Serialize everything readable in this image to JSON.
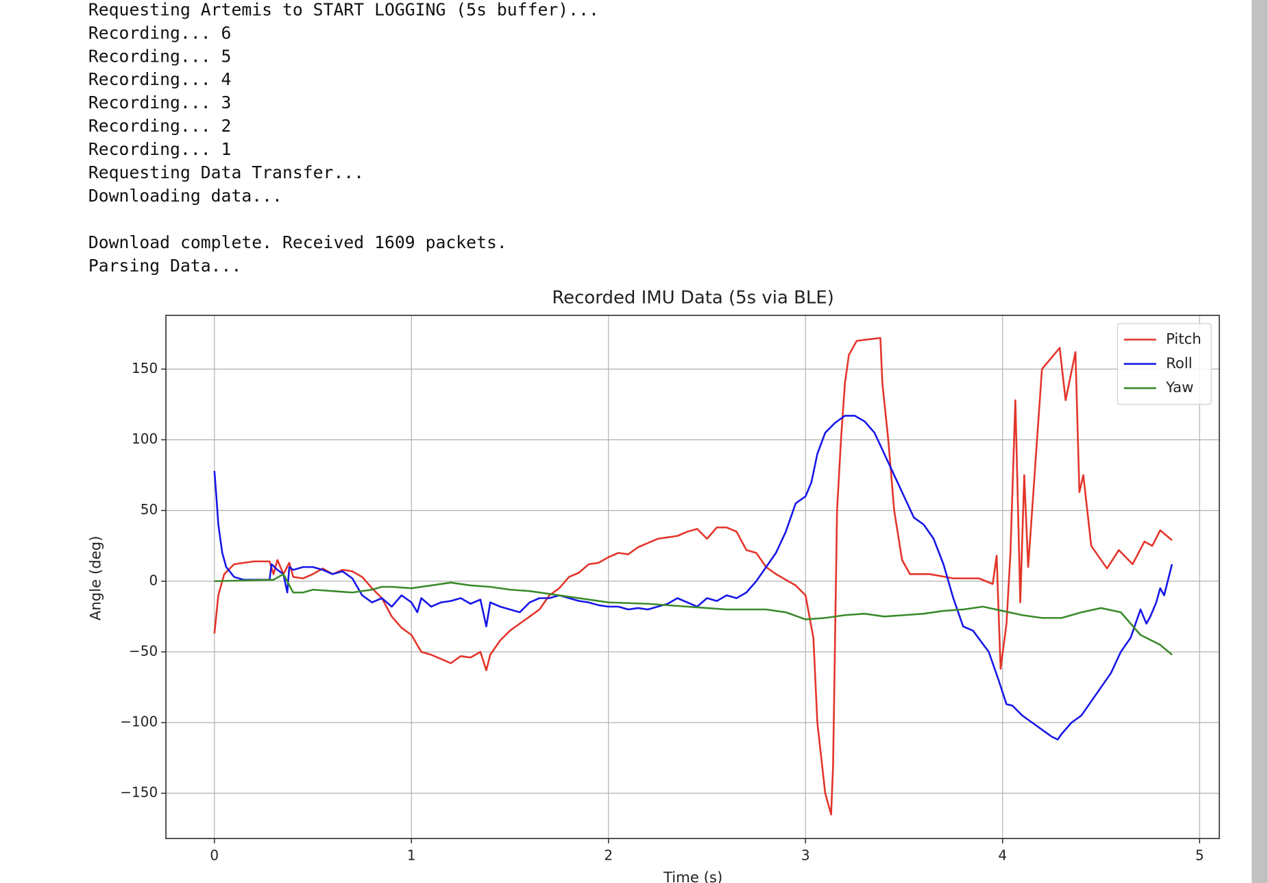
{
  "output": {
    "lines": [
      "Requesting Artemis to START LOGGING (5s buffer)...",
      "Recording... 6",
      "Recording... 5",
      "Recording... 4",
      "Recording... 3",
      "Recording... 2",
      "Recording... 1",
      "Requesting Data Transfer...",
      "Downloading data..."
    ],
    "summary": [
      "Download complete. Received 1609 packets.",
      "Parsing Data..."
    ]
  },
  "chart_data": {
    "type": "line",
    "title": "Recorded IMU Data (5s via BLE)",
    "x_label": "Time (s)",
    "y_label": "Angle (deg)",
    "xlim": [
      -0.246,
      5.1
    ],
    "ylim": [
      -182,
      188
    ],
    "xticks": [
      0,
      1,
      2,
      3,
      4,
      5
    ],
    "yticks": [
      {
        "value": -150,
        "label": "−150"
      },
      {
        "value": -100,
        "label": "−100"
      },
      {
        "value": -50,
        "label": "−50"
      },
      0,
      50,
      100,
      150
    ],
    "grid": true,
    "legend": "upper right",
    "series": [
      {
        "name": "Pitch",
        "color": "#e3342a",
        "x": [
          0,
          0.02,
          0.05,
          0.1,
          0.2,
          0.28,
          0.3,
          0.32,
          0.35,
          0.38,
          0.4,
          0.45,
          0.5,
          0.55,
          0.6,
          0.65,
          0.7,
          0.75,
          0.8,
          0.85,
          0.9,
          0.95,
          1.0,
          1.05,
          1.1,
          1.15,
          1.2,
          1.25,
          1.3,
          1.35,
          1.38,
          1.4,
          1.45,
          1.5,
          1.55,
          1.6,
          1.65,
          1.7,
          1.75,
          1.8,
          1.85,
          1.9,
          1.95,
          2.0,
          2.05,
          2.1,
          2.15,
          2.2,
          2.25,
          2.3,
          2.35,
          2.4,
          2.45,
          2.5,
          2.55,
          2.6,
          2.65,
          2.7,
          2.75,
          2.8,
          2.85,
          2.9,
          2.95,
          3.0,
          3.04,
          3.06,
          3.1,
          3.13,
          3.14,
          3.16,
          3.18,
          3.2,
          3.22,
          3.26,
          3.38,
          3.39,
          3.42,
          3.45,
          3.49,
          3.53,
          3.63,
          3.75,
          3.88,
          3.95,
          3.97,
          3.99,
          4.02,
          4.04,
          4.065,
          4.09,
          4.11,
          4.13,
          4.2,
          4.29,
          4.32,
          4.37,
          4.39,
          4.41,
          4.45,
          4.53,
          4.59,
          4.66,
          4.72,
          4.76,
          4.8,
          4.86
        ],
        "values": [
          -37,
          -10,
          5,
          12,
          14,
          14,
          5,
          15,
          5,
          13,
          3,
          2,
          5,
          9,
          5,
          8,
          7,
          3,
          -5,
          -12,
          -25,
          -33,
          -38,
          -50,
          -52,
          -55,
          -58,
          -53,
          -54,
          -50,
          -63,
          -52,
          -42,
          -35,
          -30,
          -25,
          -20,
          -10,
          -5,
          3,
          6,
          12,
          13,
          17,
          20,
          19,
          24,
          27,
          30,
          31,
          32,
          35,
          37,
          30,
          38,
          38,
          35,
          22,
          20,
          10,
          5,
          1,
          -3,
          -10,
          -40,
          -100,
          -150,
          -165,
          -130,
          50,
          100,
          140,
          160,
          170,
          172,
          140,
          100,
          50,
          15,
          5,
          5,
          2,
          2,
          -2,
          18,
          -62,
          -30,
          20,
          128,
          -15,
          75,
          10,
          150,
          165,
          128,
          162,
          63,
          75,
          25,
          9,
          22,
          12,
          28,
          25,
          36,
          29
        ]
      },
      {
        "name": "Roll",
        "color": "#1616e8",
        "x": [
          0,
          0.01,
          0.02,
          0.04,
          0.06,
          0.1,
          0.15,
          0.2,
          0.28,
          0.29,
          0.32,
          0.35,
          0.37,
          0.38,
          0.4,
          0.45,
          0.5,
          0.55,
          0.6,
          0.65,
          0.7,
          0.75,
          0.8,
          0.85,
          0.9,
          0.95,
          1.0,
          1.03,
          1.05,
          1.1,
          1.15,
          1.2,
          1.25,
          1.3,
          1.35,
          1.38,
          1.4,
          1.45,
          1.5,
          1.55,
          1.6,
          1.65,
          1.7,
          1.75,
          1.8,
          1.85,
          1.9,
          1.95,
          2.0,
          2.05,
          2.1,
          2.15,
          2.2,
          2.25,
          2.3,
          2.35,
          2.4,
          2.45,
          2.5,
          2.55,
          2.6,
          2.65,
          2.7,
          2.75,
          2.8,
          2.85,
          2.9,
          2.95,
          3.0,
          3.03,
          3.06,
          3.1,
          3.15,
          3.2,
          3.25,
          3.3,
          3.35,
          3.4,
          3.45,
          3.5,
          3.55,
          3.6,
          3.65,
          3.7,
          3.75,
          3.8,
          3.85,
          3.93,
          3.98,
          4.02,
          4.05,
          4.1,
          4.15,
          4.2,
          4.25,
          4.28,
          4.3,
          4.35,
          4.4,
          4.45,
          4.5,
          4.55,
          4.6,
          4.65,
          4.7,
          4.73,
          4.75,
          4.78,
          4.8,
          4.82,
          4.86
        ],
        "values": [
          78,
          60,
          40,
          20,
          10,
          3,
          1,
          1,
          1,
          12,
          8,
          5,
          -8,
          10,
          8,
          10,
          10,
          8,
          5,
          7,
          2,
          -10,
          -15,
          -12,
          -18,
          -10,
          -15,
          -22,
          -12,
          -18,
          -15,
          -14,
          -12,
          -16,
          -13,
          -32,
          -15,
          -18,
          -20,
          -22,
          -15,
          -12,
          -12,
          -10,
          -12,
          -14,
          -15,
          -17,
          -18,
          -18,
          -20,
          -19,
          -20,
          -18,
          -16,
          -12,
          -15,
          -18,
          -12,
          -14,
          -10,
          -12,
          -8,
          0,
          10,
          20,
          35,
          55,
          60,
          70,
          90,
          105,
          112,
          117,
          117,
          113,
          105,
          90,
          75,
          60,
          45,
          40,
          30,
          12,
          -12,
          -32,
          -35,
          -50,
          -70,
          -87,
          -88,
          -95,
          -100,
          -105,
          -110,
          -112,
          -108,
          -100,
          -95,
          -85,
          -75,
          -65,
          -50,
          -40,
          -20,
          -30,
          -25,
          -15,
          -5,
          -10,
          12
        ]
      },
      {
        "name": "Yaw",
        "color": "#3a8a2a",
        "x": [
          0,
          0.3,
          0.35,
          0.4,
          0.45,
          0.5,
          0.6,
          0.7,
          0.8,
          0.85,
          0.9,
          1.0,
          1.1,
          1.2,
          1.3,
          1.4,
          1.5,
          1.6,
          1.7,
          1.8,
          1.9,
          2.0,
          2.2,
          2.4,
          2.5,
          2.6,
          2.8,
          2.9,
          3.0,
          3.1,
          3.2,
          3.3,
          3.4,
          3.5,
          3.6,
          3.7,
          3.8,
          3.9,
          4.0,
          4.1,
          4.2,
          4.3,
          4.4,
          4.5,
          4.6,
          4.65,
          4.7,
          4.8,
          4.86
        ],
        "values": [
          0,
          1,
          5,
          -8,
          -8,
          -6,
          -7,
          -8,
          -6,
          -4,
          -4,
          -5,
          -3,
          -1,
          -3,
          -4,
          -6,
          -7,
          -9,
          -11,
          -13,
          -15,
          -16,
          -18,
          -19,
          -20,
          -20,
          -22,
          -27,
          -26,
          -24,
          -23,
          -25,
          -24,
          -23,
          -21,
          -20,
          -18,
          -21,
          -24,
          -26,
          -26,
          -22,
          -19,
          -22,
          -30,
          -38,
          -45,
          -52
        ]
      }
    ]
  }
}
